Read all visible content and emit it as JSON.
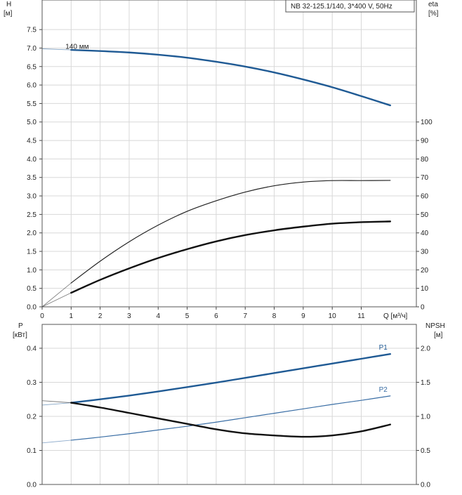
{
  "chart_data": [
    {
      "type": "line",
      "panel": "head-efficiency",
      "title": "NB 32-125.1/140, 3*400 V, 50Hz",
      "xlabel": "Q [м³/ч]",
      "ylabel_left": [
        "H",
        "[м]"
      ],
      "ylabel_right": [
        "eta",
        "[%]"
      ],
      "x_ticks": [
        0,
        1,
        2,
        3,
        4,
        5,
        6,
        7,
        8,
        9,
        10,
        11
      ],
      "y_left_ticks": [
        "0.0",
        "0.5",
        "1.0",
        "1.5",
        "2.0",
        "2.5",
        "3.0",
        "3.5",
        "4.0",
        "4.5",
        "5.0",
        "5.5",
        "6.0",
        "6.5",
        "7.0",
        "7.5"
      ],
      "y_right_ticks": [
        "0",
        "10",
        "20",
        "30",
        "40",
        "50",
        "60",
        "70",
        "80",
        "90",
        "100"
      ],
      "xlim": [
        0,
        12.9
      ],
      "ylim_left": [
        0,
        8.3
      ],
      "ylim_right": [
        0,
        166
      ],
      "grid": true,
      "series": [
        {
          "name": "140 мм",
          "axis": "left",
          "color": "#1f5a94",
          "weight": "bold",
          "x": [
            0,
            1,
            2,
            3,
            4,
            5,
            6,
            7,
            8,
            9,
            10,
            11,
            12
          ],
          "y": [
            6.98,
            6.95,
            6.92,
            6.88,
            6.82,
            6.74,
            6.63,
            6.5,
            6.34,
            6.15,
            5.94,
            5.7,
            5.45
          ],
          "dashed_until_x": 1
        },
        {
          "axis": "right",
          "color": "#222222",
          "weight": "thin",
          "x": [
            0,
            1,
            2,
            3,
            4,
            5,
            6,
            7,
            8,
            9,
            10,
            11,
            12
          ],
          "y": [
            0,
            12.9,
            24.7,
            35.2,
            44.2,
            51.7,
            57.4,
            62.1,
            65.5,
            67.5,
            68.3,
            68.3,
            68.4
          ],
          "dashed_until_x": 1
        },
        {
          "axis": "left",
          "color": "#111111",
          "weight": "bold",
          "x": [
            0,
            1,
            2,
            3,
            4,
            5,
            6,
            7,
            8,
            9,
            10,
            11,
            12
          ],
          "y": [
            0,
            0.38,
            0.73,
            1.04,
            1.32,
            1.56,
            1.77,
            1.94,
            2.07,
            2.17,
            2.25,
            2.29,
            2.31
          ],
          "dashed_until_x": 1
        }
      ],
      "annotations": [
        {
          "text": "140 мм",
          "x": 0.95,
          "y": 7.0
        }
      ]
    },
    {
      "type": "line",
      "panel": "power-npsh",
      "ylabel_left": [
        "P",
        "[кВт]"
      ],
      "ylabel_right": [
        "NPSH",
        "[м]"
      ],
      "y_left_ticks": [
        "0.0",
        "0.1",
        "0.2",
        "0.3",
        "0.4"
      ],
      "y_right_ticks": [
        "0.0",
        "0.5",
        "1.0",
        "1.5",
        "2.0"
      ],
      "xlim": [
        0,
        12.9
      ],
      "ylim_left": [
        0,
        0.47
      ],
      "ylim_right": [
        0,
        2.35
      ],
      "grid": true,
      "series": [
        {
          "name": "P1",
          "axis": "left",
          "color": "#1f5a94",
          "weight": "bold",
          "x": [
            0,
            1,
            2,
            3,
            4,
            5,
            6,
            7,
            8,
            9,
            10,
            11,
            12
          ],
          "y": [
            0.233,
            0.24,
            0.25,
            0.261,
            0.273,
            0.286,
            0.299,
            0.313,
            0.327,
            0.341,
            0.355,
            0.369,
            0.383
          ],
          "dashed_until_x": 1
        },
        {
          "name": "P2",
          "axis": "left",
          "color": "#3a6ea5",
          "weight": "thin",
          "x": [
            0,
            1,
            2,
            3,
            4,
            5,
            6,
            7,
            8,
            9,
            10,
            11,
            12
          ],
          "y": [
            0.122,
            0.13,
            0.139,
            0.149,
            0.16,
            0.171,
            0.183,
            0.196,
            0.209,
            0.222,
            0.235,
            0.247,
            0.26
          ],
          "dashed_until_x": 1
        },
        {
          "axis": "right",
          "color": "#111111",
          "weight": "bold",
          "x": [
            0,
            1,
            2,
            3,
            4,
            5,
            6,
            7,
            8,
            9,
            10,
            11,
            12
          ],
          "y": [
            1.23,
            1.2,
            1.13,
            1.05,
            0.97,
            0.89,
            0.81,
            0.75,
            0.72,
            0.7,
            0.72,
            0.78,
            0.88
          ],
          "dashed_until_x": 1
        }
      ]
    }
  ]
}
